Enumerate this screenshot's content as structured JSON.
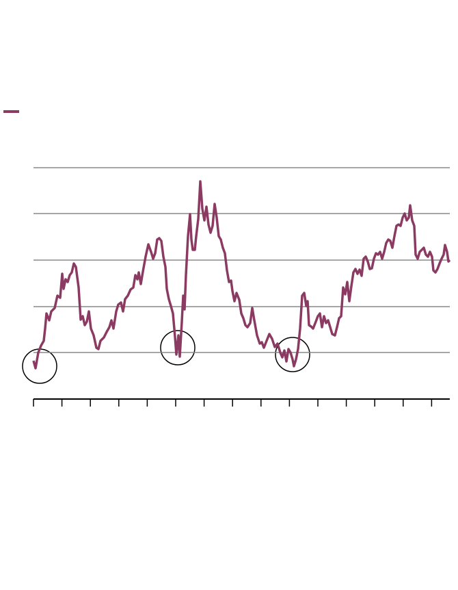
{
  "chart_data": {
    "type": "line",
    "x": [
      0,
      3,
      7,
      11,
      15,
      17,
      19,
      23,
      26,
      31,
      35,
      39,
      42,
      44,
      47,
      50,
      53,
      56,
      59,
      62,
      66,
      69,
      72,
      75,
      78,
      81,
      84,
      88,
      92,
      95,
      98,
      103,
      107,
      111,
      114,
      117,
      121,
      124,
      128,
      131,
      134,
      138,
      142,
      146,
      149,
      152,
      154,
      157,
      160,
      164,
      168,
      172,
      175,
      178,
      181,
      184,
      187,
      190,
      193,
      195,
      198,
      201,
      204,
      207,
      209,
      212,
      214,
      217,
      219,
      221,
      223,
      226,
      229,
      231,
      233,
      236,
      238,
      241,
      244,
      247,
      250,
      253,
      256,
      259,
      262,
      265,
      268,
      271,
      274,
      277,
      280,
      283,
      286,
      289,
      291,
      294,
      297,
      301,
      304,
      307,
      310,
      313,
      317,
      320,
      323,
      327,
      331,
      334,
      337,
      341,
      345,
      349,
      353,
      357,
      361,
      364,
      367,
      370,
      373,
      376,
      379,
      381,
      384,
      387,
      390,
      393,
      396,
      399,
      401,
      403,
      406,
      409,
      413,
      416,
      419,
      422,
      425,
      428,
      431,
      434,
      437,
      441,
      444,
      447,
      450,
      453,
      456,
      459,
      462,
      465,
      468,
      471,
      474,
      477,
      480,
      483,
      486,
      489,
      492,
      495,
      498,
      501,
      504,
      507,
      510,
      513,
      516,
      519,
      522,
      525,
      528,
      531,
      534,
      537,
      540,
      543,
      546,
      549,
      551,
      554,
      557,
      559,
      562,
      565,
      568,
      571,
      574,
      577,
      580,
      583,
      585,
      588,
      591,
      594,
      597,
      600,
      602,
      605,
      607,
      609
    ],
    "series": [
      {
        "color": "#8b3a62",
        "values": [
          56,
          45,
          68,
          78,
          85,
          103,
          125,
          115,
          128,
          133,
          151,
          148,
          183,
          161,
          175,
          171,
          181,
          185,
          198,
          193,
          163,
          116,
          121,
          108,
          113,
          128,
          103,
          93,
          75,
          73,
          85,
          90,
          98,
          105,
          115,
          103,
          128,
          138,
          141,
          128,
          146,
          151,
          160,
          163,
          181,
          175,
          185,
          168,
          186,
          208,
          226,
          215,
          205,
          213,
          233,
          235,
          231,
          208,
          193,
          161,
          146,
          136,
          125,
          91,
          65,
          93,
          62,
          113,
          151,
          131,
          181,
          238,
          270,
          233,
          218,
          218,
          238,
          263,
          318,
          278,
          261,
          281,
          255,
          243,
          253,
          285,
          265,
          238,
          233,
          221,
          213,
          188,
          171,
          173,
          158,
          143,
          155,
          145,
          125,
          118,
          108,
          105,
          111,
          133,
          115,
          93,
          81,
          83,
          75,
          85,
          95,
          88,
          76,
          81,
          68,
          61,
          71,
          55,
          73,
          68,
          58,
          48,
          58,
          73,
          103,
          151,
          155,
          136,
          143,
          108,
          106,
          103,
          113,
          121,
          125,
          105,
          121,
          111,
          115,
          105,
          95,
          93,
          105,
          118,
          121,
          163,
          153,
          171,
          143,
          165,
          185,
          190,
          183,
          189,
          180,
          205,
          208,
          201,
          190,
          191,
          205,
          213,
          211,
          215,
          205,
          215,
          228,
          233,
          231,
          221,
          238,
          253,
          255,
          253,
          265,
          271,
          261,
          265,
          283,
          261,
          253,
          211,
          205,
          215,
          218,
          221,
          211,
          208,
          215,
          208,
          188,
          185,
          190,
          198,
          205,
          211,
          225,
          215,
          201,
          203
        ]
      }
    ],
    "xlim": [
      0,
      609
    ],
    "xticks": [
      0,
      41.6,
      83.2,
      124.8,
      166.4,
      208,
      249.6,
      291.2,
      332.8,
      374.4,
      416,
      457.6,
      499.2,
      540.8,
      582.4
    ],
    "ylim": [
      0,
      340
    ],
    "yticks": [
      68,
      135,
      203,
      271,
      338
    ],
    "grid": true,
    "legend": "upper left"
  }
}
